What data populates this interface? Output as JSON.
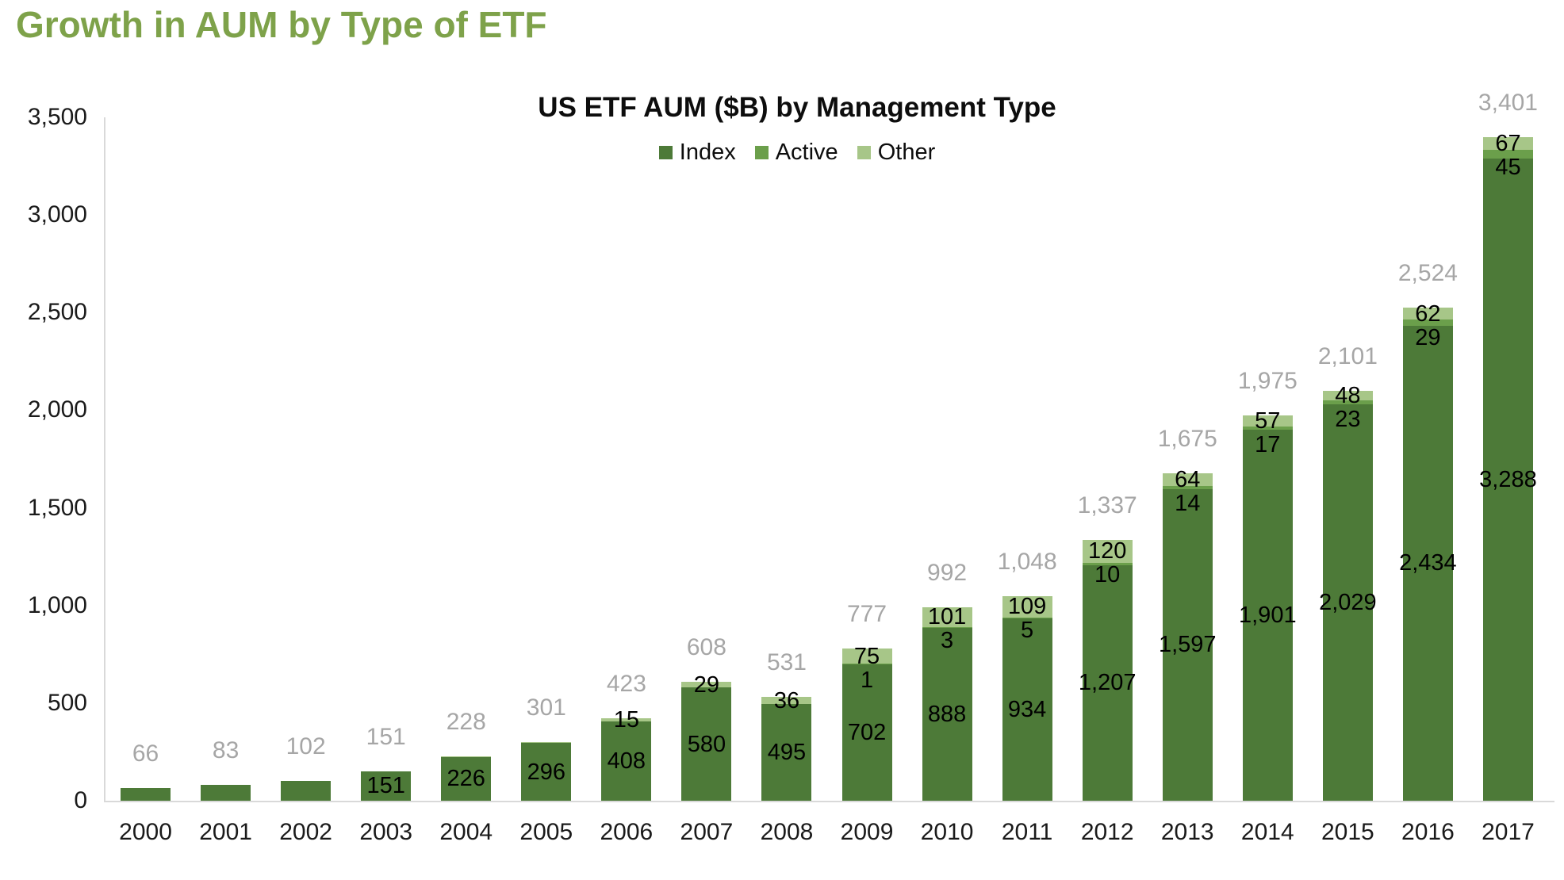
{
  "page_title": "Growth in AUM by Type of ETF",
  "colors": {
    "heading_green": "#7ea24a",
    "index_green": "#4d7a38",
    "active_green": "#6b9f4b",
    "other_green": "#a7c688",
    "total_label_gray": "#a6a6a6",
    "axis_line_gray": "#d9d9d9",
    "label_black": "#000000"
  },
  "chart_data": {
    "type": "bar",
    "stacked": true,
    "title": "US ETF AUM ($B) by Management Type",
    "xlabel": "",
    "ylabel": "",
    "grid": false,
    "legend_position": "top",
    "ylim": [
      0,
      3500
    ],
    "ytick_values": [
      0,
      500,
      1000,
      1500,
      2000,
      2500,
      3000,
      3500
    ],
    "ytick_labels": [
      "0",
      "500",
      "1,000",
      "1,500",
      "2,000",
      "2,500",
      "3,000",
      "3,500"
    ],
    "categories": [
      "2000",
      "2001",
      "2002",
      "2003",
      "2004",
      "2005",
      "2006",
      "2007",
      "2008",
      "2009",
      "2010",
      "2011",
      "2012",
      "2013",
      "2014",
      "2015",
      "2016",
      "2017"
    ],
    "series": [
      {
        "name": "Index",
        "color_key": "index_green",
        "values": [
          66,
          83,
          102,
          151,
          226,
          296,
          408,
          580,
          495,
          702,
          888,
          934,
          1207,
          1597,
          1901,
          2029,
          2434,
          3288
        ],
        "labels": [
          "",
          "",
          "",
          "151",
          "226",
          "296",
          "408",
          "580",
          "495",
          "702",
          "888",
          "934",
          "1,207",
          "1,597",
          "1,901",
          "2,029",
          "2,434",
          "3,288"
        ]
      },
      {
        "name": "Active",
        "color_key": "active_green",
        "values": [
          0,
          0,
          0,
          0,
          0,
          0,
          0,
          0,
          0,
          1,
          3,
          5,
          10,
          14,
          17,
          23,
          29,
          45
        ],
        "labels": [
          "",
          "",
          "",
          "",
          "",
          "",
          "",
          "",
          "",
          "1",
          "3",
          "5",
          "10",
          "14",
          "17",
          "23",
          "29",
          "45"
        ]
      },
      {
        "name": "Other",
        "color_key": "other_green",
        "values": [
          0,
          0,
          0,
          0,
          2,
          5,
          15,
          29,
          36,
          75,
          101,
          109,
          120,
          64,
          57,
          48,
          62,
          67
        ],
        "labels": [
          "",
          "",
          "",
          "",
          "",
          "",
          "15",
          "29",
          "36",
          "75",
          "101",
          "109",
          "120",
          "64",
          "57",
          "48",
          "62",
          "67"
        ]
      }
    ],
    "totals": [
      66,
      83,
      102,
      151,
      228,
      301,
      423,
      608,
      531,
      777,
      992,
      1048,
      1337,
      1675,
      1975,
      2101,
      2524,
      3401
    ],
    "total_labels": [
      "66",
      "83",
      "102",
      "151",
      "228",
      "301",
      "423",
      "608",
      "531",
      "777",
      "992",
      "1,048",
      "1,337",
      "1,675",
      "1,975",
      "2,101",
      "2,524",
      "3,401"
    ]
  }
}
